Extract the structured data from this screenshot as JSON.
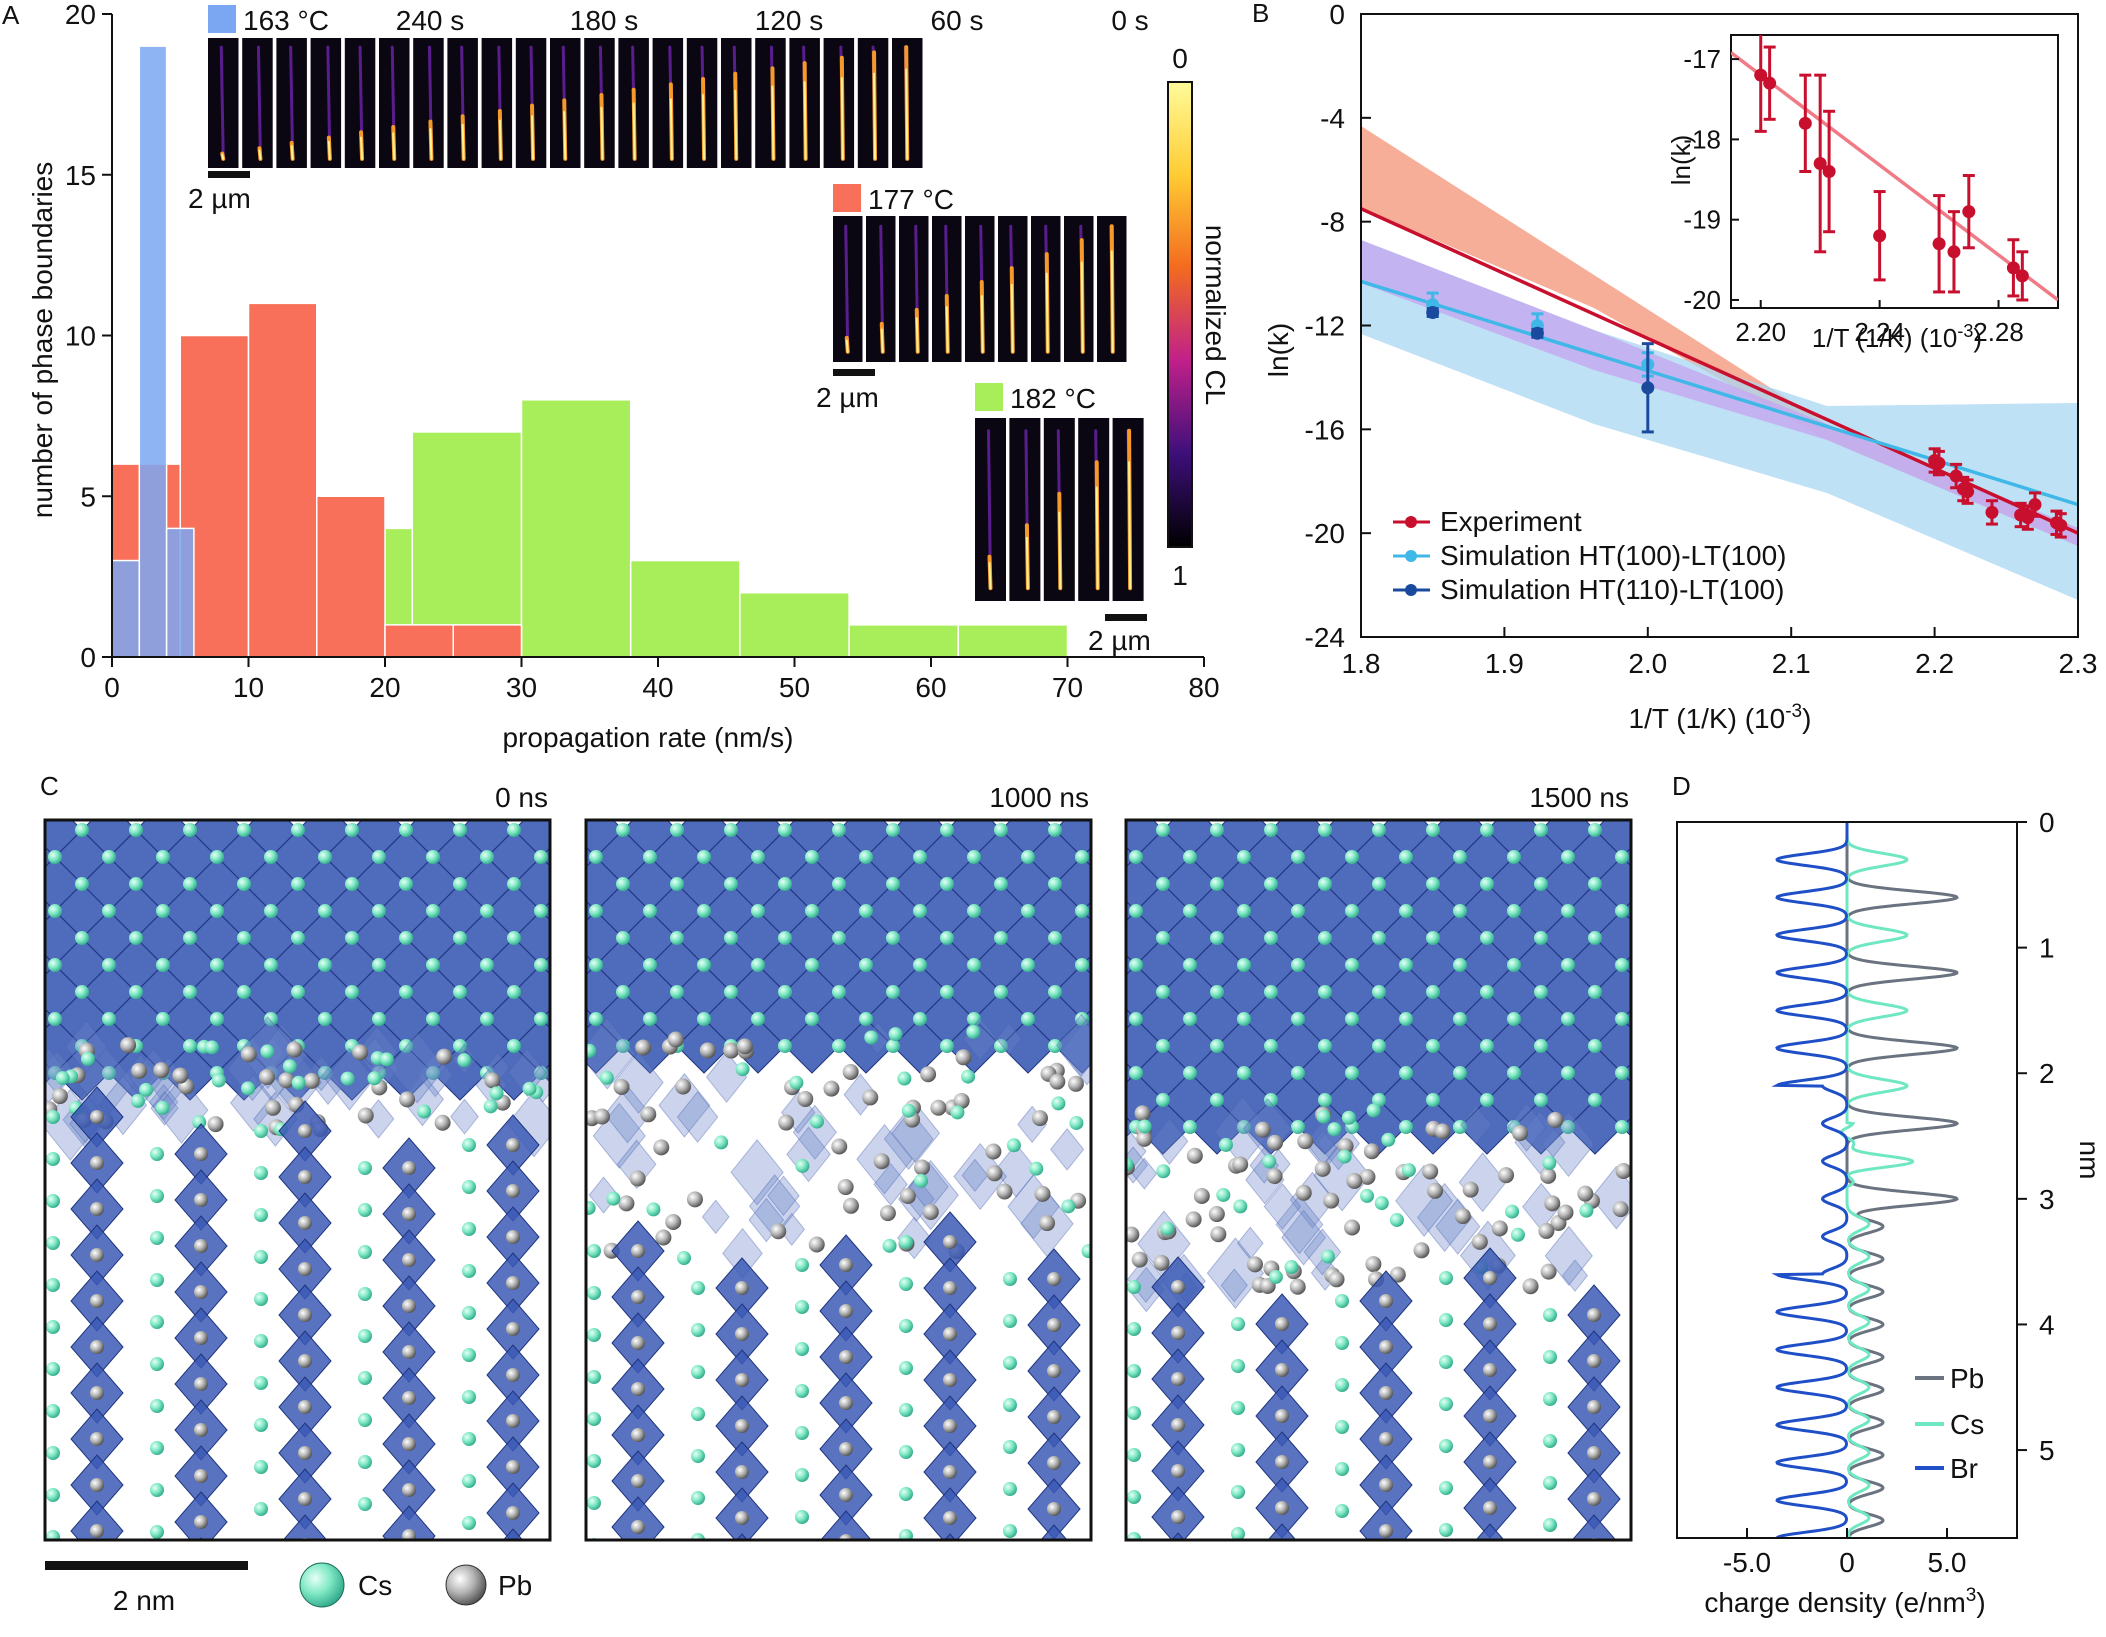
{
  "panels": {
    "a": "A",
    "b": "B",
    "c": "C",
    "d": "D"
  },
  "panel_a": {
    "ylabel": "number of phase boundaries",
    "xlabel": "propagation rate (nm/s)",
    "xticks": [
      0,
      10,
      20,
      30,
      40,
      50,
      60,
      70,
      80
    ],
    "yticks": [
      0,
      5,
      10,
      15,
      20
    ],
    "strip_time_labels": [
      "240 s",
      "180 s",
      "120 s",
      "60 s",
      "0 s"
    ],
    "legend": [
      "163 °C",
      "177 °C",
      "182 °C"
    ],
    "scalebar_label": "2 µm",
    "colorbar_label": "normalized CL",
    "colorbar_min": "0",
    "colorbar_max": "1"
  },
  "panel_b": {
    "ylabel": "ln(k)",
    "xlabel": "1/T (1/K) (10",
    "xlabel_sup": "-3",
    "xlabel_end": ")",
    "xticks": [
      "1.8",
      "1.9",
      "2.0",
      "2.1",
      "2.2",
      "2.3"
    ],
    "yticks": [
      "0",
      "-4",
      "-8",
      "-12",
      "-16",
      "-20",
      "-24"
    ],
    "legend": [
      "Experiment",
      "Simulation HT(100)-LT(100)",
      "Simulation HT(110)-LT(100)"
    ],
    "inset_ylabel": "ln(k)",
    "inset_xticks": [
      "2.20",
      "2.24",
      "2.28"
    ],
    "inset_yticks": [
      "-17",
      "-18",
      "-19",
      "-20"
    ]
  },
  "panel_c": {
    "times": [
      "0 ns",
      "1000 ns",
      "1500 ns"
    ],
    "scalebar_label": "2 nm",
    "legend": [
      "Cs",
      "Pb"
    ]
  },
  "panel_d": {
    "xlabel": "charge density (e/nm",
    "xlabel_sup": "3",
    "xlabel_end": ")",
    "ylabel": "nm",
    "xticks": [
      "-5.0",
      "0",
      "5.0"
    ],
    "yticks": [
      "0",
      "1",
      "2",
      "3",
      "4",
      "5"
    ],
    "legend": [
      "Pb",
      "Cs",
      "Br"
    ]
  },
  "colors": {
    "blue_163": "#7ba7f2",
    "red_177": "#f8705a",
    "green_182": "#a8ee5a",
    "experiment": "#c8102e",
    "sim_ht100": "#3fb8e8",
    "sim_ht110": "#1a4a9e",
    "cs_atom": "#7fe8c4",
    "pb_atom": "#9a9a9a",
    "octahedra": "#3c5bb5",
    "br_line": "#1f4fc7",
    "cs_line": "#6fe7c2",
    "pb_line": "#6b7380"
  },
  "chart_data": [
    {
      "type": "bar",
      "xlabel": "propagation rate (nm/s)",
      "ylabel": "number of phase boundaries",
      "xlim": [
        0,
        80
      ],
      "ylim": [
        0,
        20
      ],
      "series": [
        {
          "name": "163 °C",
          "bins": [
            [
              0,
              2,
              3
            ],
            [
              2,
              4,
              19
            ],
            [
              4,
              6,
              4
            ]
          ]
        },
        {
          "name": "177 °C",
          "bins": [
            [
              0,
              5,
              6
            ],
            [
              5,
              10,
              10
            ],
            [
              10,
              15,
              11
            ],
            [
              15,
              20,
              5
            ],
            [
              20,
              25,
              1
            ],
            [
              25,
              30,
              1
            ]
          ]
        },
        {
          "name": "182 °C",
          "bins": [
            [
              0,
              6,
              5
            ],
            [
              6,
              14,
              4
            ],
            [
              14,
              22,
              4
            ],
            [
              22,
              30,
              7
            ],
            [
              30,
              38,
              8
            ],
            [
              38,
              46,
              3
            ],
            [
              46,
              54,
              2
            ],
            [
              54,
              62,
              1
            ],
            [
              62,
              70,
              1
            ]
          ]
        }
      ]
    },
    {
      "type": "scatter",
      "xlabel": "1/T (1/K) (10-3)",
      "ylabel": "ln(k)",
      "xlim": [
        1.8,
        2.3
      ],
      "ylim": [
        -24,
        0
      ],
      "series": [
        {
          "name": "Experiment",
          "x": [
            2.2,
            2.203,
            2.215,
            2.22,
            2.223,
            2.24,
            2.26,
            2.265,
            2.27,
            2.285,
            2.288
          ],
          "y": [
            -17.2,
            -17.3,
            -17.8,
            -18.3,
            -18.4,
            -19.2,
            -19.3,
            -19.4,
            -18.9,
            -19.6,
            -19.7
          ]
        },
        {
          "name": "Simulation HT(100)-LT(100)",
          "x": [
            1.85,
            1.923,
            2.0
          ],
          "y": [
            -11.2,
            -12.0,
            -13.5
          ]
        },
        {
          "name": "Simulation HT(110)-LT(100)",
          "x": [
            1.85,
            1.923,
            2.0
          ],
          "y": [
            -11.5,
            -12.3,
            -14.4
          ]
        }
      ],
      "fits": [
        {
          "series": "Experiment",
          "x": [
            1.8,
            2.3
          ],
          "y": [
            -7.5,
            -20.0
          ]
        },
        {
          "series": "Simulation HT(100)-LT(100)",
          "x": [
            1.8,
            2.3
          ],
          "y": [
            -10.3,
            -18.9
          ]
        }
      ],
      "inset": {
        "xlim": [
          2.19,
          2.3
        ],
        "ylim": [
          -20.1,
          -16.7
        ]
      }
    },
    {
      "type": "line",
      "xlabel": "charge density (e/nm3)",
      "ylabel": "nm",
      "xlim": [
        -8.5,
        8.5
      ],
      "ylim": [
        0,
        5.7
      ],
      "series": [
        {
          "name": "Pb"
        },
        {
          "name": "Cs"
        },
        {
          "name": "Br"
        }
      ]
    }
  ]
}
